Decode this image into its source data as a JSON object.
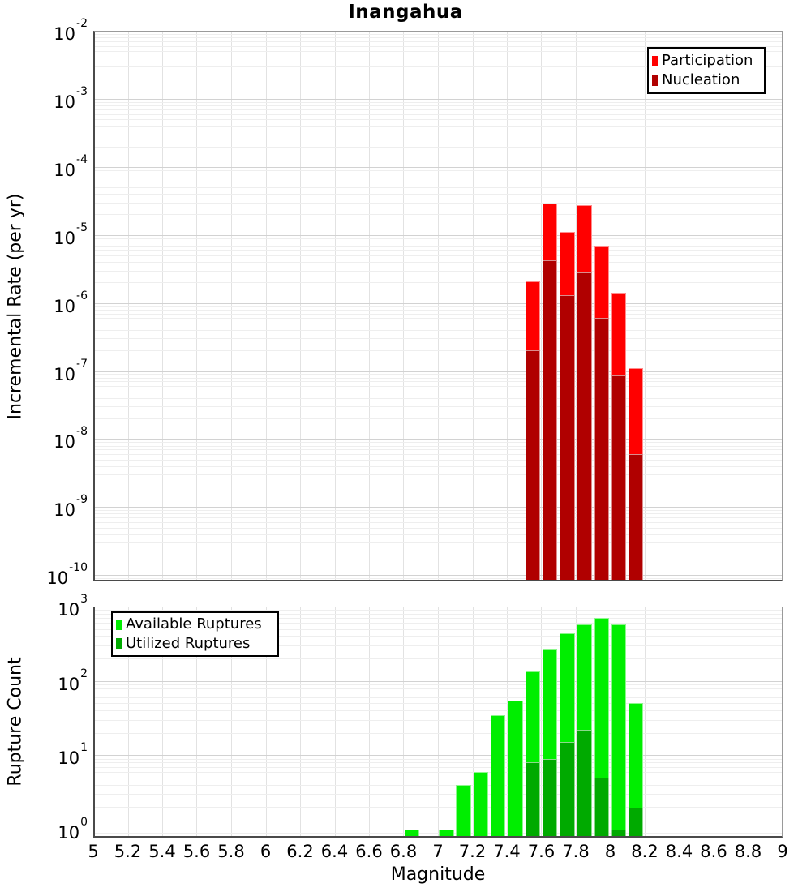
{
  "chart_data": [
    {
      "id": "incremental-rate",
      "type": "bar",
      "title": "Inangahua",
      "ylabel": "Incremental Rate (per yr)",
      "xlabel": "Magnitude",
      "yscale": "log",
      "xlim": [
        5,
        9
      ],
      "ylim": [
        1e-10,
        0.01
      ],
      "grid": true,
      "legend_position": "top-right",
      "bin_width": 0.1,
      "bin_starts": [
        7.5,
        7.6,
        7.7,
        7.8,
        7.9,
        8.0,
        8.1
      ],
      "series": [
        {
          "name": "Participation",
          "color": "#ff0000",
          "values": [
            2.1e-06,
            2.9e-05,
            1.1e-05,
            2.75e-05,
            7e-06,
            1.4e-06,
            1.1e-07
          ]
        },
        {
          "name": "Nucleation",
          "color": "#b00000",
          "values": [
            2e-07,
            4.2e-06,
            1.3e-06,
            2.8e-06,
            6e-07,
            8.5e-08,
            6e-09
          ]
        }
      ],
      "y_tick_exponents": [
        -2,
        -3,
        -4,
        -5,
        -6,
        -7,
        -8,
        -9,
        -10
      ],
      "x_ticks": [
        {
          "value": 5,
          "label": "5"
        },
        {
          "value": 5.2,
          "label": "5.2"
        },
        {
          "value": 5.4,
          "label": "5.4"
        },
        {
          "value": 5.6,
          "label": "5.6"
        },
        {
          "value": 5.8,
          "label": "5.8"
        },
        {
          "value": 6,
          "label": "6"
        },
        {
          "value": 6.2,
          "label": "6.2"
        },
        {
          "value": 6.4,
          "label": "6.4"
        },
        {
          "value": 6.6,
          "label": "6.6"
        },
        {
          "value": 6.8,
          "label": "6.8"
        },
        {
          "value": 7,
          "label": "7"
        },
        {
          "value": 7.2,
          "label": "7.2"
        },
        {
          "value": 7.4,
          "label": "7.4"
        },
        {
          "value": 7.6,
          "label": "7.6"
        },
        {
          "value": 7.8,
          "label": "7.8"
        },
        {
          "value": 8,
          "label": "8"
        },
        {
          "value": 8.2,
          "label": "8.2"
        },
        {
          "value": 8.4,
          "label": "8.4"
        },
        {
          "value": 8.6,
          "label": "8.6"
        },
        {
          "value": 8.8,
          "label": "8.8"
        },
        {
          "value": 9,
          "label": "9"
        }
      ]
    },
    {
      "id": "rupture-count",
      "type": "bar",
      "ylabel": "Rupture Count",
      "xlabel": "Magnitude",
      "yscale": "log",
      "xlim": [
        5,
        9
      ],
      "ylim": [
        1,
        1000
      ],
      "grid": true,
      "legend_position": "top-left",
      "bin_width": 0.1,
      "bin_starts": [
        6.8,
        7.0,
        7.1,
        7.2,
        7.3,
        7.4,
        7.5,
        7.6,
        7.7,
        7.8,
        7.9,
        8.0,
        8.1
      ],
      "series": [
        {
          "name": "Available Ruptures",
          "color": "#00ee00",
          "values": [
            1,
            1,
            4,
            6,
            35,
            55,
            135,
            270,
            440,
            570,
            700,
            580,
            50
          ]
        },
        {
          "name": "Utilized Ruptures",
          "color": "#00aa00",
          "values": [
            0,
            0,
            0,
            0,
            0,
            0,
            8,
            9,
            15,
            22,
            5,
            1,
            2
          ]
        }
      ],
      "y_tick_exponents": [
        3,
        2,
        1,
        0
      ],
      "x_ticks": [
        {
          "value": 5,
          "label": "5"
        },
        {
          "value": 5.2,
          "label": "5.2"
        },
        {
          "value": 5.4,
          "label": "5.4"
        },
        {
          "value": 5.6,
          "label": "5.6"
        },
        {
          "value": 5.8,
          "label": "5.8"
        },
        {
          "value": 6,
          "label": "6"
        },
        {
          "value": 6.2,
          "label": "6.2"
        },
        {
          "value": 6.4,
          "label": "6.4"
        },
        {
          "value": 6.6,
          "label": "6.6"
        },
        {
          "value": 6.8,
          "label": "6.8"
        },
        {
          "value": 7,
          "label": "7"
        },
        {
          "value": 7.2,
          "label": "7.2"
        },
        {
          "value": 7.4,
          "label": "7.4"
        },
        {
          "value": 7.6,
          "label": "7.6"
        },
        {
          "value": 7.8,
          "label": "7.8"
        },
        {
          "value": 8,
          "label": "8"
        },
        {
          "value": 8.2,
          "label": "8.2"
        },
        {
          "value": 8.4,
          "label": "8.4"
        },
        {
          "value": 8.6,
          "label": "8.6"
        },
        {
          "value": 8.8,
          "label": "8.8"
        },
        {
          "value": 9,
          "label": "9"
        }
      ]
    }
  ]
}
